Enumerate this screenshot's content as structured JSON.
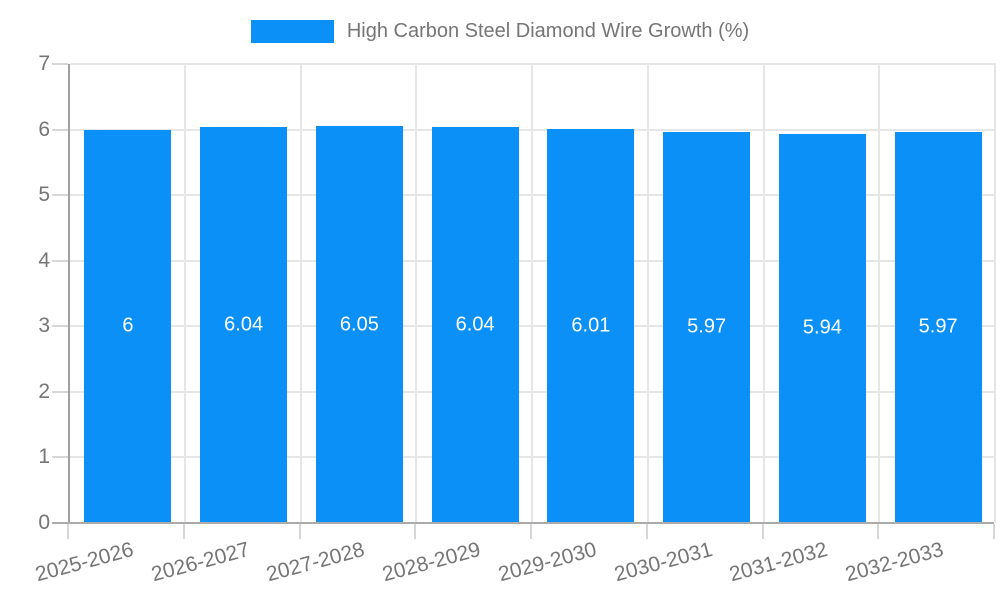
{
  "chart_data": {
    "type": "bar",
    "title": "High Carbon Steel Diamond Wire Growth (%)",
    "categories": [
      "2025-2026",
      "2026-2027",
      "2027-2028",
      "2028-2029",
      "2029-2030",
      "2030-2031",
      "2031-2032",
      "2032-2033"
    ],
    "values": [
      6,
      6.04,
      6.05,
      6.04,
      6.01,
      5.97,
      5.94,
      5.97
    ],
    "value_labels": [
      "6",
      "6.04",
      "6.05",
      "6.04",
      "6.01",
      "5.97",
      "5.94",
      "5.97"
    ],
    "xlabel": "",
    "ylabel": "",
    "ylim": [
      0,
      7
    ],
    "y_ticks": [
      0,
      1,
      2,
      3,
      4,
      5,
      6,
      7
    ],
    "grid": true,
    "legend": {
      "position": "top",
      "label": "High Carbon Steel Diamond Wire Growth (%)"
    },
    "colors": {
      "bar": "#0b90f8",
      "grid": "#e6e6e6",
      "axis_y": "#a0a0a0",
      "axis_x": "#ababab",
      "tick": "#d7d7d7",
      "text": "#757575",
      "bar_label": "#ffffff",
      "background": "#ffffff"
    }
  }
}
